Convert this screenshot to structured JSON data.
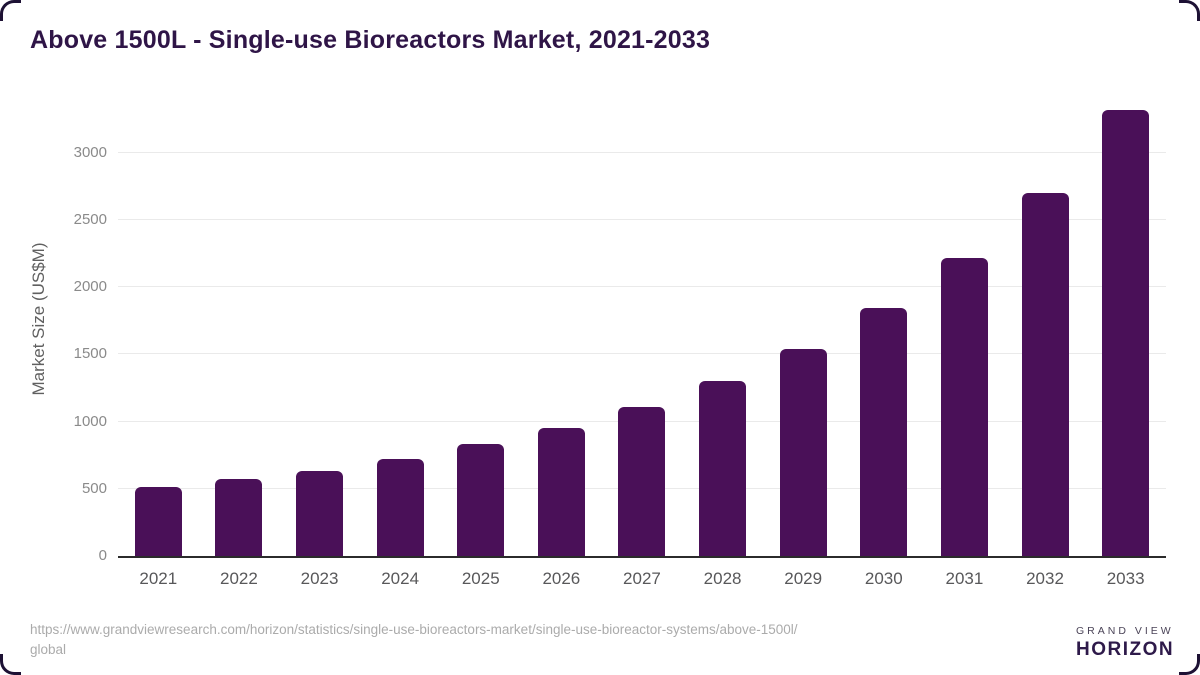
{
  "title": "Above 1500L - Single-use Bioreactors Market, 2021-2033",
  "chart_data": {
    "type": "bar",
    "categories": [
      "2021",
      "2022",
      "2023",
      "2024",
      "2025",
      "2026",
      "2027",
      "2028",
      "2029",
      "2030",
      "2031",
      "2032",
      "2033"
    ],
    "values": [
      510,
      575,
      630,
      725,
      830,
      955,
      1110,
      1300,
      1540,
      1845,
      2220,
      2700,
      3320
    ],
    "title": "Above 1500L - Single-use Bioreactors Market, 2021-2033",
    "xlabel": "",
    "ylabel": "Market Size (US$M)",
    "yticks": [
      0,
      500,
      1000,
      1500,
      2000,
      2500,
      3000
    ],
    "ylim": [
      0,
      3430
    ],
    "grid": true,
    "legend": "none",
    "bar_color": "#4a1058",
    "gridline_color": "#eaeaea",
    "axis_line_color": "#2b2b2b"
  },
  "footer": {
    "source_url_lines": [
      "https://www.grandviewresearch.com/horizon/statistics/single-use-bioreactors-market/single-use-bioreactor-systems/above-1500l/",
      "global"
    ],
    "logo": {
      "top_text": "GRAND VIEW",
      "bottom_text": "HORIZON",
      "circle_top_color": "#2c2040",
      "circle_bottom_color": "#5bc7f1"
    }
  },
  "colors": {
    "title_text": "#2f1547",
    "background": "#ffffff"
  }
}
